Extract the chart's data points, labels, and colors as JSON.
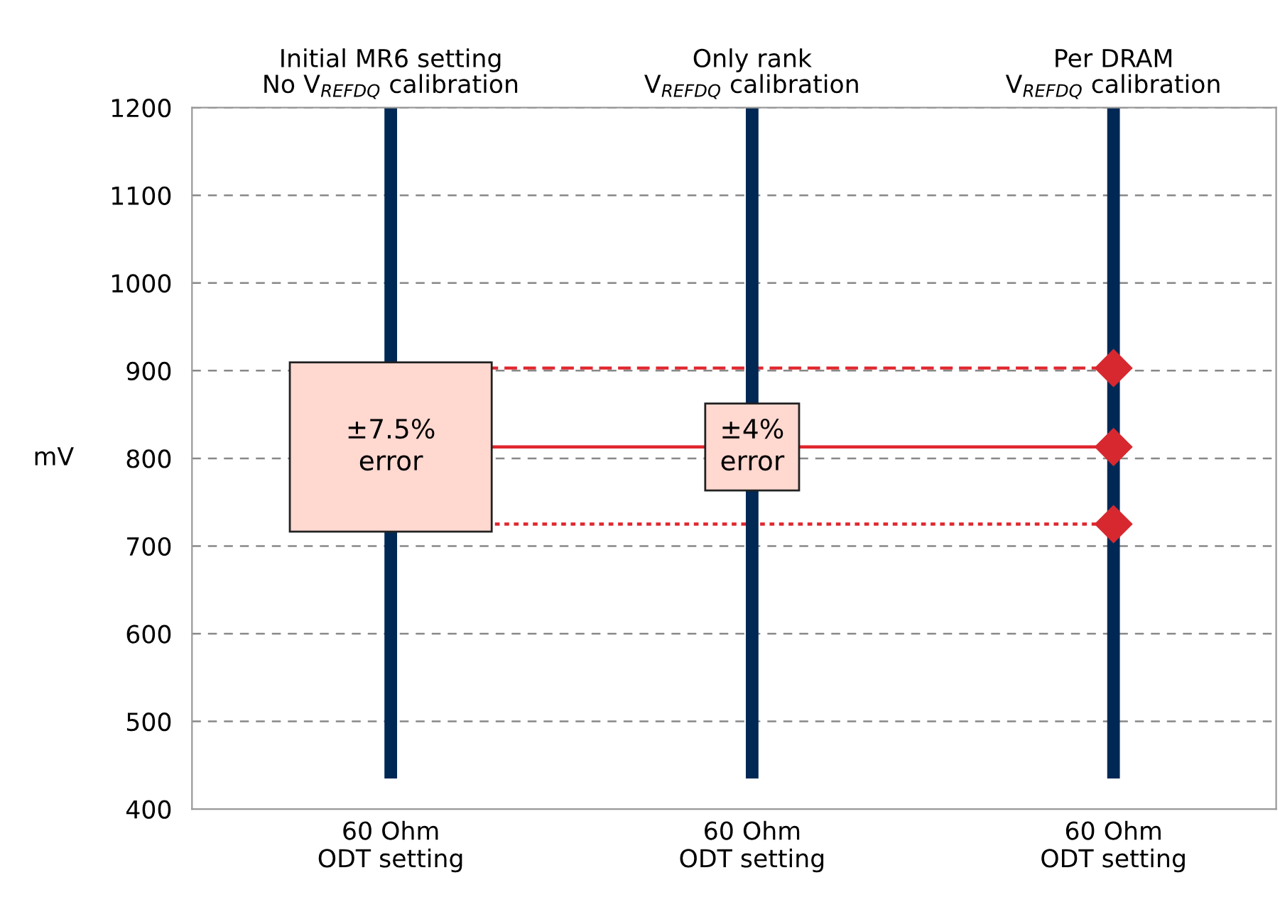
{
  "chart_data": {
    "type": "bar",
    "ylabel": "mV",
    "ylim": [
      400,
      1200
    ],
    "yticks": [
      400,
      500,
      600,
      700,
      800,
      900,
      1000,
      1100,
      1200
    ],
    "categories": [
      "60 Ohm\nODT setting",
      "60 Ohm\nODT setting",
      "60 Ohm\nODT setting"
    ],
    "base": [
      1200,
      1200,
      1200
    ],
    "values": [
      -765,
      -765,
      -765
    ],
    "color": "#002855",
    "grid": "y",
    "series": [
      {
        "type": "scatter",
        "color": "#d7282f",
        "values": [
          null,
          null,
          903
        ],
        "marker": "diamond"
      },
      {
        "type": "scatter",
        "color": "#d7282f",
        "values": [
          null,
          null,
          813
        ],
        "marker": "diamond"
      },
      {
        "type": "scatter",
        "color": "#d7282f",
        "values": [
          null,
          null,
          725
        ],
        "marker": "diamond"
      }
    ],
    "ref_lines": [
      {
        "axis": "y",
        "value": 813,
        "color": "#e0262e",
        "line_style": "solid"
      },
      {
        "axis": "y",
        "value": 903,
        "color": "#e0262e",
        "line_style": "dashed"
      },
      {
        "axis": "y",
        "value": 725,
        "color": "#e0262e",
        "line_style": "dotted"
      }
    ],
    "annotations": [
      "Initial MR6 setting\nNo V$_{REFDQ}$ calibration",
      "Only rank\nV$_{REFDQ}$ calibration",
      "Per DRAM\nV$_{REFDQ}$ calibration",
      "±7.5%\nerror",
      "±4%\nerror"
    ]
  }
}
